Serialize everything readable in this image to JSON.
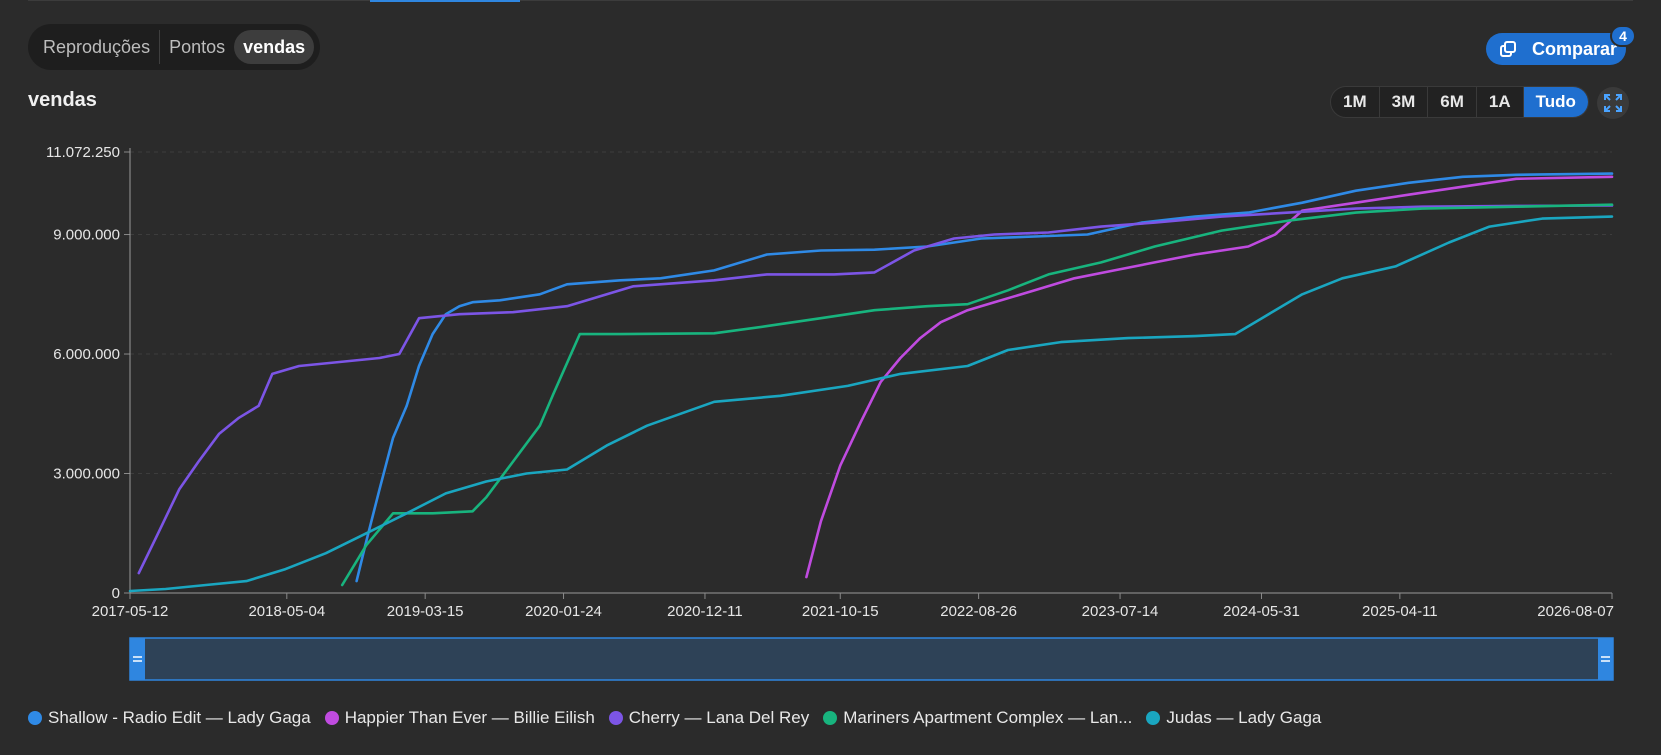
{
  "tabs": {
    "items": [
      "Reproduções",
      "Pontos",
      "vendas"
    ],
    "active_index": 2
  },
  "compare": {
    "label": "Comparar",
    "badge": "4",
    "icon": "compare-icon"
  },
  "range_buttons": {
    "items": [
      "1M",
      "3M",
      "6M",
      "1A",
      "Tudo"
    ],
    "active_index": 4
  },
  "fullscreen_icon": "expand-icon",
  "colors": {
    "background": "#2b2b2b",
    "accent": "#1f6fcf"
  },
  "chart_data": {
    "type": "line",
    "title": "vendas",
    "x_ticks": [
      "2017-05-12",
      "2018-05-04",
      "2019-03-15",
      "2020-01-24",
      "2020-12-11",
      "2021-10-15",
      "2022-08-26",
      "2023-07-14",
      "2024-05-31",
      "2025-04-11",
      "2026-08-07"
    ],
    "xlim": [
      "2017-05-12",
      "2026-08-07"
    ],
    "y_ticks": [
      "0",
      "3.000.000",
      "6.000.000",
      "9.000.000",
      "11.072.250"
    ],
    "ylim": [
      0,
      11072250
    ],
    "grid": true,
    "legend_position": "bottom-left",
    "series": [
      {
        "name": "Shallow - Radio Edit — Lady Gaga",
        "color": "#2f8ae6",
        "x": [
          "2018-10-10",
          "2018-11-01",
          "2018-12-01",
          "2019-01-01",
          "2019-02-01",
          "2019-03-01",
          "2019-04-01",
          "2019-05-01",
          "2019-06-01",
          "2019-07-01",
          "2019-09-01",
          "2019-12-01",
          "2020-02-01",
          "2020-06-01",
          "2020-09-01",
          "2021-01-01",
          "2021-05-01",
          "2021-09-01",
          "2022-01-01",
          "2022-05-01",
          "2022-09-01",
          "2023-01-01",
          "2023-05-01",
          "2023-09-01",
          "2024-01-01",
          "2024-05-01",
          "2024-09-01",
          "2025-01-01",
          "2025-05-01",
          "2025-09-01",
          "2026-01-01",
          "2026-08-07"
        ],
        "values": [
          300000,
          1300000,
          2600000,
          3900000,
          4700000,
          5700000,
          6500000,
          7000000,
          7200000,
          7300000,
          7350000,
          7500000,
          7750000,
          7850000,
          7900000,
          8100000,
          8500000,
          8600000,
          8620000,
          8700000,
          8900000,
          8950000,
          9000000,
          9300000,
          9450000,
          9550000,
          9800000,
          10100000,
          10300000,
          10450000,
          10500000,
          10530000
        ]
      },
      {
        "name": "Happier Than Ever — Billie Eilish",
        "color": "#c04be0",
        "x": [
          "2021-07-30",
          "2021-09-01",
          "2021-10-15",
          "2021-12-01",
          "2022-01-15",
          "2022-03-01",
          "2022-04-15",
          "2022-06-01",
          "2022-08-01",
          "2022-10-01",
          "2023-01-01",
          "2023-04-01",
          "2023-07-01",
          "2023-10-01",
          "2024-01-01",
          "2024-05-01",
          "2024-07-01",
          "2024-09-01",
          "2025-01-01",
          "2025-05-01",
          "2025-09-01",
          "2026-01-01",
          "2026-08-07"
        ],
        "values": [
          400000,
          1800000,
          3200000,
          4300000,
          5300000,
          5900000,
          6400000,
          6800000,
          7100000,
          7300000,
          7600000,
          7900000,
          8100000,
          8300000,
          8500000,
          8700000,
          9000000,
          9600000,
          9800000,
          10000000,
          10200000,
          10400000,
          10450000
        ]
      },
      {
        "name": "Cherry — Lana Del Rey",
        "color": "#7c55e6",
        "x": [
          "2017-06-01",
          "2017-07-15",
          "2017-09-01",
          "2017-10-15",
          "2017-12-01",
          "2018-01-15",
          "2018-03-01",
          "2018-04-01",
          "2018-06-01",
          "2018-09-01",
          "2018-12-01",
          "2019-01-15",
          "2019-03-01",
          "2019-06-01",
          "2019-10-01",
          "2020-02-01",
          "2020-07-01",
          "2021-01-01",
          "2021-05-01",
          "2021-10-01",
          "2022-01-01",
          "2022-04-01",
          "2022-07-01",
          "2022-10-01",
          "2023-02-01",
          "2023-06-01",
          "2023-10-01",
          "2024-03-01",
          "2024-08-01",
          "2025-01-01",
          "2025-06-01",
          "2026-01-01",
          "2026-08-07"
        ],
        "values": [
          500000,
          1500000,
          2600000,
          3300000,
          4000000,
          4400000,
          4700000,
          5500000,
          5700000,
          5800000,
          5900000,
          6000000,
          6900000,
          7000000,
          7050000,
          7200000,
          7700000,
          7850000,
          8000000,
          8000000,
          8050000,
          8600000,
          8900000,
          9000000,
          9050000,
          9200000,
          9300000,
          9450000,
          9550000,
          9650000,
          9700000,
          9720000,
          9730000
        ]
      },
      {
        "name": "Mariners Apartment Complex — Lan...",
        "color": "#18b47e",
        "x": [
          "2018-09-07",
          "2018-11-01",
          "2019-01-01",
          "2019-04-01",
          "2019-07-01",
          "2019-08-01",
          "2019-10-01",
          "2019-12-01",
          "2020-01-01",
          "2020-03-01",
          "2020-06-01",
          "2021-01-01",
          "2021-05-01",
          "2021-09-01",
          "2022-01-01",
          "2022-05-01",
          "2022-08-01",
          "2022-11-01",
          "2023-02-01",
          "2023-06-01",
          "2023-10-01",
          "2024-03-01",
          "2024-08-01",
          "2025-01-01",
          "2025-06-01",
          "2026-01-01",
          "2026-08-07"
        ],
        "values": [
          200000,
          1200000,
          2000000,
          2000000,
          2050000,
          2400000,
          3300000,
          4200000,
          5000000,
          6500000,
          6500000,
          6520000,
          6700000,
          6900000,
          7100000,
          7200000,
          7250000,
          7600000,
          8000000,
          8300000,
          8700000,
          9100000,
          9350000,
          9550000,
          9650000,
          9700000,
          9750000
        ]
      },
      {
        "name": "Judas — Lady Gaga",
        "color": "#1aa6c0",
        "x": [
          "2017-05-12",
          "2017-08-01",
          "2017-11-01",
          "2018-02-01",
          "2018-05-01",
          "2018-08-01",
          "2018-11-01",
          "2019-02-01",
          "2019-05-01",
          "2019-08-01",
          "2019-11-01",
          "2020-02-01",
          "2020-05-01",
          "2020-08-01",
          "2021-01-01",
          "2021-06-01",
          "2021-11-01",
          "2022-03-01",
          "2022-08-01",
          "2022-11-01",
          "2023-03-01",
          "2023-08-01",
          "2024-01-01",
          "2024-04-01",
          "2024-06-01",
          "2024-09-01",
          "2024-12-01",
          "2025-04-01",
          "2025-08-01",
          "2025-11-01",
          "2026-03-01",
          "2026-08-07"
        ],
        "values": [
          50000,
          100000,
          200000,
          300000,
          600000,
          1000000,
          1500000,
          2000000,
          2500000,
          2800000,
          3000000,
          3100000,
          3700000,
          4200000,
          4800000,
          4950000,
          5200000,
          5500000,
          5700000,
          6100000,
          6300000,
          6400000,
          6450000,
          6500000,
          6900000,
          7500000,
          7900000,
          8200000,
          8800000,
          9200000,
          9400000,
          9450000
        ]
      }
    ]
  }
}
